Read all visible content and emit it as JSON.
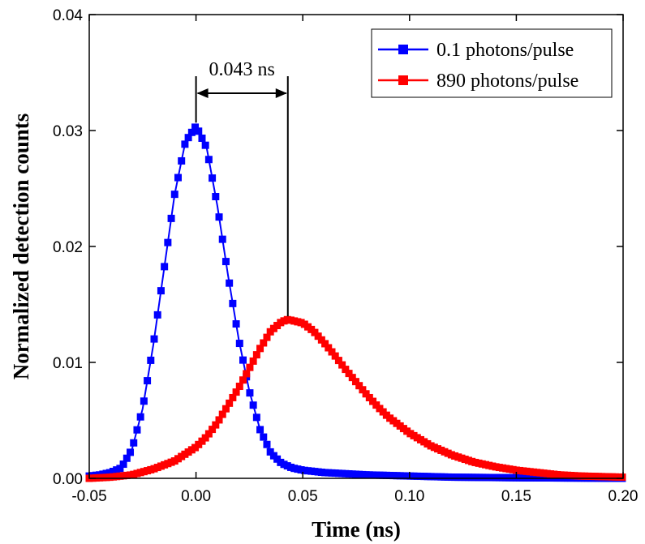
{
  "chart_data": {
    "type": "line",
    "title": "",
    "xlabel": "Time (ns)",
    "ylabel": "Normalized detection counts",
    "xlim": [
      -0.05,
      0.2
    ],
    "ylim": [
      0,
      0.04
    ],
    "xticks": [
      -0.05,
      0.0,
      0.05,
      0.1,
      0.15,
      0.2
    ],
    "xtick_labels": [
      "-0.05",
      "0.00",
      "0.05",
      "0.10",
      "0.15",
      "0.20"
    ],
    "yticks": [
      0,
      0.01,
      0.02,
      0.03,
      0.04
    ],
    "ytick_labels": [
      "0.00",
      "0.01",
      "0.02",
      "0.03",
      "0.04"
    ],
    "grid": false,
    "legend_position": "top-right",
    "series": [
      {
        "name": "0.1 photons/pulse",
        "color": "#0000ff",
        "marker": "square",
        "x": [
          -0.05,
          -0.045,
          -0.04,
          -0.035,
          -0.03,
          -0.025,
          -0.02,
          -0.015,
          -0.01,
          -0.005,
          0.0,
          0.005,
          0.01,
          0.015,
          0.02,
          0.025,
          0.03,
          0.035,
          0.04,
          0.045,
          0.05,
          0.06,
          0.07,
          0.08,
          0.1,
          0.12,
          0.15,
          0.2
        ],
        "values": [
          0.0002,
          0.0003,
          0.0005,
          0.0009,
          0.0025,
          0.006,
          0.0115,
          0.018,
          0.0245,
          0.029,
          0.0304,
          0.0285,
          0.0235,
          0.0175,
          0.012,
          0.0075,
          0.0042,
          0.0022,
          0.0013,
          0.0009,
          0.0007,
          0.0005,
          0.0004,
          0.0003,
          0.0002,
          0.0001,
          5e-05,
          0.0
        ]
      },
      {
        "name": "890 photons/pulse",
        "color": "#ff0000",
        "marker": "square",
        "x": [
          -0.05,
          -0.04,
          -0.03,
          -0.02,
          -0.01,
          0.0,
          0.005,
          0.01,
          0.015,
          0.02,
          0.025,
          0.03,
          0.035,
          0.04,
          0.043,
          0.05,
          0.055,
          0.06,
          0.065,
          0.07,
          0.075,
          0.08,
          0.085,
          0.09,
          0.1,
          0.11,
          0.12,
          0.13,
          0.14,
          0.15,
          0.16,
          0.17,
          0.18,
          0.2
        ],
        "values": [
          0.0,
          0.0001,
          0.0003,
          0.0008,
          0.0015,
          0.0027,
          0.0036,
          0.0048,
          0.0063,
          0.0078,
          0.0095,
          0.0112,
          0.0127,
          0.0135,
          0.0137,
          0.0134,
          0.0127,
          0.0117,
          0.0106,
          0.0094,
          0.0083,
          0.0072,
          0.0062,
          0.0053,
          0.0039,
          0.0028,
          0.002,
          0.0014,
          0.001,
          0.0007,
          0.0005,
          0.0003,
          0.0002,
          0.0001
        ]
      }
    ],
    "annotations": [
      {
        "type": "double-arrow",
        "label": "0.043 ns",
        "x_start": 0.0,
        "x_end": 0.043
      }
    ]
  }
}
